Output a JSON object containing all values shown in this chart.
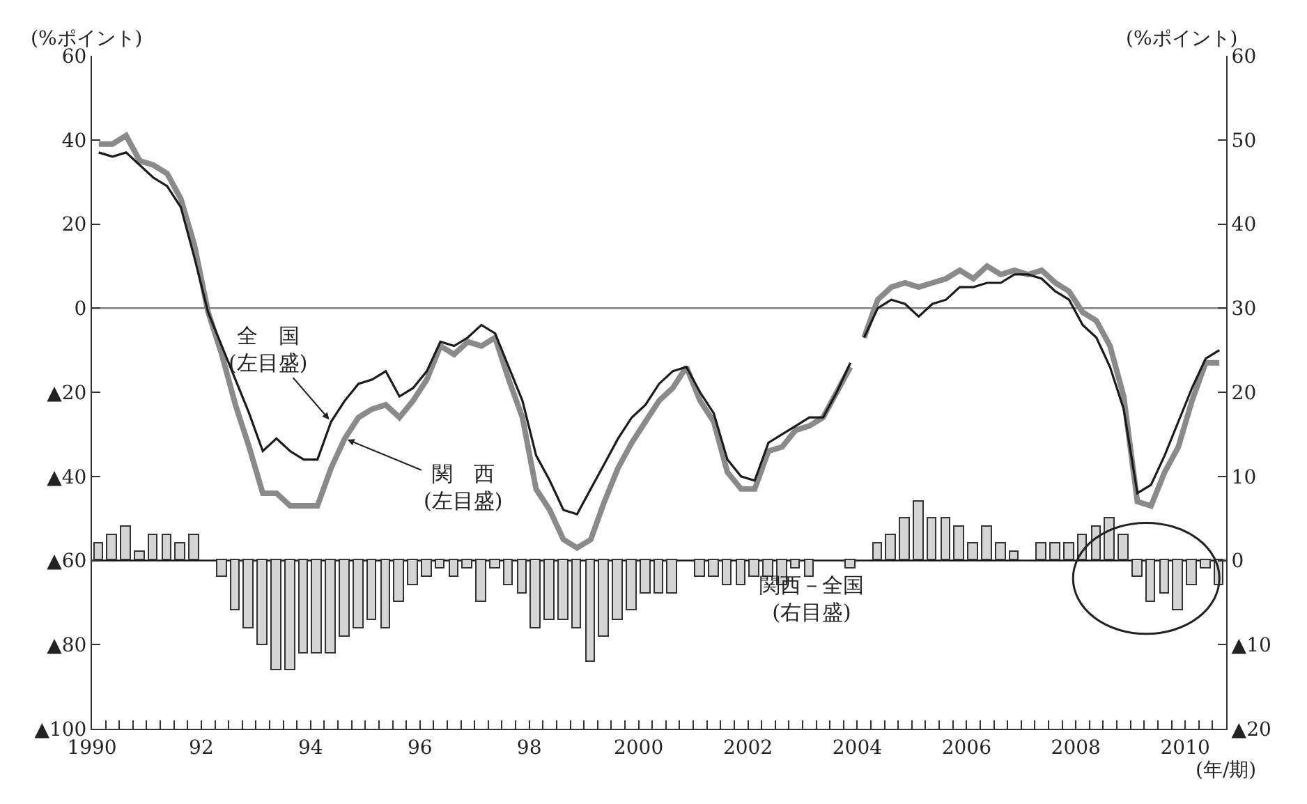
{
  "chart_data": {
    "type": "line",
    "ylabel": "(%ポイント)",
    "y2label": "(%ポイント)",
    "xlabel": "(年/期)",
    "xlim": [
      1990,
      2010.75
    ],
    "xticks": [
      {
        "value": 1990,
        "label": "1990"
      },
      {
        "value": 1990.25,
        "label": null
      },
      {
        "value": 1990.5,
        "label": null
      },
      {
        "value": 1990.75,
        "label": null
      },
      {
        "value": 1991,
        "label": null
      },
      {
        "value": 1991.25,
        "label": null
      },
      {
        "value": 1991.5,
        "label": null
      },
      {
        "value": 1991.75,
        "label": null
      },
      {
        "value": 1992,
        "label": "92"
      },
      {
        "value": 1992.25,
        "label": null
      },
      {
        "value": 1992.5,
        "label": null
      },
      {
        "value": 1992.75,
        "label": null
      },
      {
        "value": 1993,
        "label": null
      },
      {
        "value": 1993.25,
        "label": null
      },
      {
        "value": 1993.5,
        "label": null
      },
      {
        "value": 1993.75,
        "label": null
      },
      {
        "value": 1994,
        "label": "94"
      },
      {
        "value": 1994.25,
        "label": null
      },
      {
        "value": 1994.5,
        "label": null
      },
      {
        "value": 1994.75,
        "label": null
      },
      {
        "value": 1995,
        "label": null
      },
      {
        "value": 1995.25,
        "label": null
      },
      {
        "value": 1995.5,
        "label": null
      },
      {
        "value": 1995.75,
        "label": null
      },
      {
        "value": 1996,
        "label": "96"
      },
      {
        "value": 1996.25,
        "label": null
      },
      {
        "value": 1996.5,
        "label": null
      },
      {
        "value": 1996.75,
        "label": null
      },
      {
        "value": 1997,
        "label": null
      },
      {
        "value": 1997.25,
        "label": null
      },
      {
        "value": 1997.5,
        "label": null
      },
      {
        "value": 1997.75,
        "label": null
      },
      {
        "value": 1998,
        "label": "98"
      },
      {
        "value": 1998.25,
        "label": null
      },
      {
        "value": 1998.5,
        "label": null
      },
      {
        "value": 1998.75,
        "label": null
      },
      {
        "value": 1999,
        "label": null
      },
      {
        "value": 1999.25,
        "label": null
      },
      {
        "value": 1999.5,
        "label": null
      },
      {
        "value": 1999.75,
        "label": null
      },
      {
        "value": 2000,
        "label": "2000"
      },
      {
        "value": 2000.25,
        "label": null
      },
      {
        "value": 2000.5,
        "label": null
      },
      {
        "value": 2000.75,
        "label": null
      },
      {
        "value": 2001,
        "label": null
      },
      {
        "value": 2001.25,
        "label": null
      },
      {
        "value": 2001.5,
        "label": null
      },
      {
        "value": 2001.75,
        "label": null
      },
      {
        "value": 2002,
        "label": "2002"
      },
      {
        "value": 2002.25,
        "label": null
      },
      {
        "value": 2002.5,
        "label": null
      },
      {
        "value": 2002.75,
        "label": null
      },
      {
        "value": 2003,
        "label": null
      },
      {
        "value": 2003.25,
        "label": null
      },
      {
        "value": 2003.5,
        "label": null
      },
      {
        "value": 2003.75,
        "label": null
      },
      {
        "value": 2004,
        "label": "2004"
      },
      {
        "value": 2004.25,
        "label": null
      },
      {
        "value": 2004.5,
        "label": null
      },
      {
        "value": 2004.75,
        "label": null
      },
      {
        "value": 2005,
        "label": null
      },
      {
        "value": 2005.25,
        "label": null
      },
      {
        "value": 2005.5,
        "label": null
      },
      {
        "value": 2005.75,
        "label": null
      },
      {
        "value": 2006,
        "label": "2006"
      },
      {
        "value": 2006.25,
        "label": null
      },
      {
        "value": 2006.5,
        "label": null
      },
      {
        "value": 2006.75,
        "label": null
      },
      {
        "value": 2007,
        "label": null
      },
      {
        "value": 2007.25,
        "label": null
      },
      {
        "value": 2007.5,
        "label": null
      },
      {
        "value": 2007.75,
        "label": null
      },
      {
        "value": 2008,
        "label": "2008"
      },
      {
        "value": 2008.25,
        "label": null
      },
      {
        "value": 2008.5,
        "label": null
      },
      {
        "value": 2008.75,
        "label": null
      },
      {
        "value": 2009,
        "label": null
      },
      {
        "value": 2009.25,
        "label": null
      },
      {
        "value": 2009.5,
        "label": null
      },
      {
        "value": 2009.75,
        "label": null
      },
      {
        "value": 2010,
        "label": "2010"
      },
      {
        "value": 2010.25,
        "label": null
      },
      {
        "value": 2010.5,
        "label": null
      }
    ],
    "ylim": [
      -100,
      60
    ],
    "yticks": [
      {
        "value": -100,
        "label": "▲100"
      },
      {
        "value": -80,
        "label": "▲80"
      },
      {
        "value": -60,
        "label": "▲60"
      },
      {
        "value": -40,
        "label": "▲40"
      },
      {
        "value": -20,
        "label": "▲20"
      },
      0,
      20,
      40,
      60
    ],
    "y2lim": [
      -20,
      60
    ],
    "y2ticks": [
      {
        "value": -20,
        "label": "▲20"
      },
      {
        "value": -10,
        "label": "▲10"
      },
      0,
      10,
      20,
      30,
      40,
      50,
      60
    ],
    "x": [
      1990.125,
      1990.375,
      1990.625,
      1990.875,
      1991.125,
      1991.375,
      1991.625,
      1991.875,
      1992.125,
      1992.375,
      1992.625,
      1992.875,
      1993.125,
      1993.375,
      1993.625,
      1993.875,
      1994.125,
      1994.375,
      1994.625,
      1994.875,
      1995.125,
      1995.375,
      1995.625,
      1995.875,
      1996.125,
      1996.375,
      1996.625,
      1996.875,
      1997.125,
      1997.375,
      1997.625,
      1997.875,
      1998.125,
      1998.375,
      1998.625,
      1998.875,
      1999.125,
      1999.375,
      1999.625,
      1999.875,
      2000.125,
      2000.375,
      2000.625,
      2000.875,
      2001.125,
      2001.375,
      2001.625,
      2001.875,
      2002.125,
      2002.375,
      2002.625,
      2002.875,
      2003.125,
      2003.375,
      2003.625,
      2003.875,
      2004.125,
      2004.375,
      2004.625,
      2004.875,
      2005.125,
      2005.375,
      2005.625,
      2005.875,
      2006.125,
      2006.375,
      2006.625,
      2006.875,
      2007.125,
      2007.375,
      2007.625,
      2007.875,
      2008.125,
      2008.375,
      2008.625,
      2008.875,
      2009.125,
      2009.375,
      2009.625,
      2009.875,
      2010.125,
      2010.375,
      2010.625
    ],
    "series": [
      {
        "type": "bar",
        "axis": "y2",
        "color": "#d4d4d4",
        "values": [
          2,
          3,
          4,
          1,
          3,
          3,
          2,
          3,
          0,
          -2,
          -6,
          -8,
          -10,
          -13,
          -13,
          -11,
          -11,
          -11,
          -9,
          -8,
          -7,
          -8,
          -5,
          -3,
          -2,
          -1,
          -2,
          -1,
          -5,
          -1,
          -3,
          -4,
          -8,
          -7,
          -7,
          -8,
          -12,
          -9,
          -7,
          -6,
          -4,
          -4,
          -4,
          0,
          -2,
          -2,
          -3,
          -3,
          -2,
          -2,
          -3,
          -1,
          -2,
          0,
          0,
          -1,
          0,
          2,
          3,
          5,
          7,
          5,
          5,
          4,
          2,
          4,
          2,
          1,
          0,
          2,
          2,
          2,
          3,
          4,
          5,
          3,
          -2,
          -5,
          -4,
          -6,
          -3,
          -1,
          -3
        ]
      },
      {
        "type": "line",
        "color": "#8a8a8a",
        "x": [
          1990.125,
          1990.375,
          1990.625,
          1990.875,
          1991.125,
          1991.375,
          1991.625,
          1991.875,
          1992.125,
          1992.375,
          1992.625,
          1992.875,
          1993.125,
          1993.375,
          1993.625,
          1993.875,
          1994.125,
          1994.375,
          1994.625,
          1994.875,
          1995.125,
          1995.375,
          1995.625,
          1995.875,
          1996.125,
          1996.375,
          1996.625,
          1996.875,
          1997.125,
          1997.375,
          1997.625,
          1997.875,
          1998.125,
          1998.375,
          1998.625,
          1998.875,
          1999.125,
          1999.375,
          1999.625,
          1999.875,
          2000.125,
          2000.375,
          2000.625,
          2000.875,
          2001.125,
          2001.375,
          2001.625,
          2001.875,
          2002.125,
          2002.375,
          2002.625,
          2002.875,
          2003.125,
          2003.375,
          2003.625,
          2003.875,
          2004.0,
          2004.125,
          2004.375,
          2004.625,
          2004.875,
          2005.125,
          2005.375,
          2005.625,
          2005.875,
          2006.125,
          2006.375,
          2006.625,
          2006.875,
          2007.125,
          2007.375,
          2007.625,
          2007.875,
          2008.125,
          2008.375,
          2008.625,
          2008.875,
          2009.125,
          2009.375,
          2009.625,
          2009.875,
          2010.125,
          2010.375,
          2010.625
        ],
        "values": [
          39,
          39,
          41,
          35,
          34,
          32,
          26,
          15,
          -1,
          -11,
          -23,
          -33,
          -44,
          -44,
          -47,
          -47,
          -47,
          -38,
          -31,
          -26,
          -24,
          -23,
          -26,
          -22,
          -17,
          -9,
          -11,
          -8,
          -9,
          -7,
          -17,
          -26,
          -43,
          -48,
          -55,
          -57,
          -55,
          -46,
          -38,
          -32,
          -27,
          -22,
          -19,
          -14,
          -22,
          -27,
          -39,
          -43,
          -43,
          -34,
          -33,
          -29,
          -28,
          -26,
          -20,
          -14,
          null,
          -7,
          2,
          5,
          6,
          5,
          6,
          7,
          9,
          7,
          10,
          8,
          9,
          8,
          9,
          6,
          4,
          -1,
          -3,
          -9,
          -21,
          -46,
          -47,
          -39,
          -33,
          -22,
          -13,
          -13
        ]
      },
      {
        "color": "#1a1a1a",
        "x": [
          1990.125,
          1990.375,
          1990.625,
          1990.875,
          1991.125,
          1991.375,
          1991.625,
          1991.875,
          1992.125,
          1992.375,
          1992.625,
          1992.875,
          1993.125,
          1993.375,
          1993.625,
          1993.875,
          1994.125,
          1994.375,
          1994.625,
          1994.875,
          1995.125,
          1995.375,
          1995.625,
          1995.875,
          1996.125,
          1996.375,
          1996.625,
          1996.875,
          1997.125,
          1997.375,
          1997.625,
          1997.875,
          1998.125,
          1998.375,
          1998.625,
          1998.875,
          1999.125,
          1999.375,
          1999.625,
          1999.875,
          2000.125,
          2000.375,
          2000.625,
          2000.875,
          2001.125,
          2001.375,
          2001.625,
          2001.875,
          2002.125,
          2002.375,
          2002.625,
          2002.875,
          2003.125,
          2003.375,
          2003.625,
          2003.875,
          2004.0,
          2004.125,
          2004.375,
          2004.625,
          2004.875,
          2005.125,
          2005.375,
          2005.625,
          2005.875,
          2006.125,
          2006.375,
          2006.625,
          2006.875,
          2007.125,
          2007.375,
          2007.625,
          2007.875,
          2008.125,
          2008.375,
          2008.625,
          2008.875,
          2009.125,
          2009.375,
          2009.625,
          2009.875,
          2010.125,
          2010.375,
          2010.625
        ],
        "values": [
          37,
          36,
          37,
          34,
          31,
          29,
          24,
          12,
          -1,
          -9,
          -17,
          -25,
          -34,
          -31,
          -34,
          -36,
          -36,
          -27,
          -22,
          -18,
          -17,
          -15,
          -21,
          -19,
          -15,
          -8,
          -9,
          -7,
          -4,
          -6,
          -14,
          -22,
          -35,
          -41,
          -48,
          -49,
          -43,
          -37,
          -31,
          -26,
          -23,
          -18,
          -15,
          -14,
          -20,
          -25,
          -36,
          -40,
          -41,
          -32,
          -30,
          -28,
          -26,
          -26,
          -20,
          -13,
          null,
          -7,
          0,
          2,
          1,
          -2,
          1,
          2,
          5,
          5,
          6,
          6,
          8,
          8,
          7,
          4,
          2,
          -4,
          -7,
          -14,
          -24,
          -44,
          -42,
          -35,
          -27,
          -19,
          -12,
          -10
        ]
      }
    ],
    "ref_lines": [
      {
        "axis": "y",
        "value": 0,
        "color": "#808080"
      },
      {
        "axis": "y2",
        "value": 0,
        "color": "#1a1a1a"
      }
    ],
    "annotations": [
      {
        "text": "全　国\n(左目盛)",
        "x": 1994.375,
        "y": -27
      },
      {
        "text": "関　西\n(左目盛)",
        "x": 1994.625,
        "y": -31
      },
      "関西－全国\n(右目盛)"
    ],
    "grid": false,
    "legend": false,
    "marker": "none",
    "line_style": "solid"
  }
}
